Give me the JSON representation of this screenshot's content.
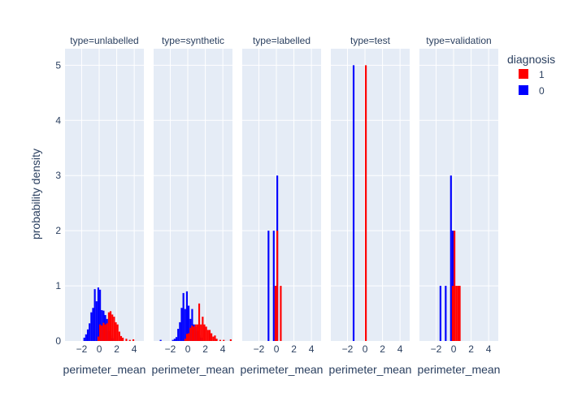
{
  "chart_data": {
    "type": "bar",
    "title": "",
    "ylabel": "probability density",
    "xlabel": "perimeter_mean",
    "ylim": [
      0,
      5.3
    ],
    "xlim": [
      -3.9,
      5.1
    ],
    "yticks": [
      "0",
      "1",
      "2",
      "3",
      "4",
      "5"
    ],
    "xticks": [
      "−2",
      "0",
      "2",
      "4"
    ],
    "legend": {
      "title": "diagnosis",
      "placement": "top-right",
      "items": [
        {
          "label": "1",
          "color": "#ff0000"
        },
        {
          "label": "0",
          "color": "#0000ff"
        }
      ]
    },
    "grid": true,
    "background_color": "#e5ecf6",
    "facets": [
      {
        "title": "type=unlabelled",
        "bin_width": 0.2,
        "series": [
          {
            "label": "0",
            "color": "#0000ff",
            "bins": [
              [
                -1.8,
                0.06
              ],
              [
                -1.6,
                0.12
              ],
              [
                -1.4,
                0.21
              ],
              [
                -1.2,
                0.32
              ],
              [
                -1.0,
                0.52
              ],
              [
                -0.8,
                0.6
              ],
              [
                -0.6,
                0.94
              ],
              [
                -0.4,
                0.72
              ],
              [
                -0.2,
                0.97
              ],
              [
                0.0,
                0.93
              ],
              [
                0.2,
                0.56
              ],
              [
                0.4,
                0.55
              ],
              [
                0.6,
                0.47
              ],
              [
                0.8,
                0.4
              ],
              [
                1.0,
                0.18
              ],
              [
                1.2,
                0.1
              ],
              [
                1.4,
                0.05
              ]
            ]
          },
          {
            "label": "1",
            "color": "#ff0000",
            "bins": [
              [
                -0.2,
                0.08
              ],
              [
                0.0,
                0.3
              ],
              [
                0.2,
                0.28
              ],
              [
                0.4,
                0.33
              ],
              [
                0.6,
                0.3
              ],
              [
                0.8,
                0.32
              ],
              [
                1.0,
                0.52
              ],
              [
                1.2,
                0.54
              ],
              [
                1.4,
                0.48
              ],
              [
                1.6,
                0.44
              ],
              [
                1.8,
                0.34
              ],
              [
                2.0,
                0.3
              ],
              [
                2.2,
                0.17
              ],
              [
                2.4,
                0.09
              ],
              [
                2.6,
                0.06
              ],
              [
                3.0,
                0.04
              ],
              [
                3.4,
                0.02
              ],
              [
                3.8,
                0.03
              ]
            ]
          }
        ]
      },
      {
        "title": "type=synthetic",
        "bin_width": 0.2,
        "series": [
          {
            "label": "0",
            "color": "#0000ff",
            "bins": [
              [
                -3.2,
                0.02
              ],
              [
                -1.8,
                0.02
              ],
              [
                -1.6,
                0.04
              ],
              [
                -1.4,
                0.07
              ],
              [
                -1.2,
                0.22
              ],
              [
                -1.0,
                0.34
              ],
              [
                -0.8,
                0.6
              ],
              [
                -0.6,
                0.87
              ],
              [
                -0.4,
                0.58
              ],
              [
                -0.2,
                0.9
              ],
              [
                0.0,
                0.64
              ],
              [
                0.2,
                0.4
              ],
              [
                0.4,
                0.58
              ],
              [
                0.6,
                0.3
              ],
              [
                0.8,
                0.25
              ],
              [
                1.0,
                0.18
              ],
              [
                1.2,
                0.1
              ],
              [
                1.4,
                0.06
              ]
            ]
          },
          {
            "label": "1",
            "color": "#ff0000",
            "bins": [
              [
                -0.4,
                0.04
              ],
              [
                -0.2,
                0.13
              ],
              [
                0.0,
                0.14
              ],
              [
                0.2,
                0.24
              ],
              [
                0.4,
                0.28
              ],
              [
                0.6,
                0.26
              ],
              [
                0.8,
                0.3
              ],
              [
                1.0,
                0.3
              ],
              [
                1.2,
                0.68
              ],
              [
                1.4,
                0.3
              ],
              [
                1.6,
                0.44
              ],
              [
                1.8,
                0.3
              ],
              [
                2.0,
                0.26
              ],
              [
                2.2,
                0.2
              ],
              [
                2.4,
                0.2
              ],
              [
                2.6,
                0.14
              ],
              [
                2.8,
                0.08
              ],
              [
                3.0,
                0.1
              ],
              [
                3.2,
                0.04
              ],
              [
                3.6,
                0.02
              ],
              [
                4.0,
                0.02
              ],
              [
                4.8,
                0.03
              ]
            ]
          }
        ]
      },
      {
        "title": "type=labelled",
        "bin_width": 0.2,
        "series": [
          {
            "label": "0",
            "color": "#0000ff",
            "bins": [
              [
                -1.0,
                2.0
              ],
              [
                -0.4,
                2.0
              ],
              [
                0.0,
                3.0
              ]
            ]
          },
          {
            "label": "1",
            "color": "#ff0000",
            "bins": [
              [
                -0.2,
                1.0
              ],
              [
                0.0,
                2.0
              ],
              [
                0.4,
                1.0
              ]
            ]
          }
        ]
      },
      {
        "title": "type=test",
        "bin_width": 0.2,
        "series": [
          {
            "label": "0",
            "color": "#0000ff",
            "bins": [
              [
                -1.4,
                5.0
              ]
            ]
          },
          {
            "label": "1",
            "color": "#ff0000",
            "bins": [
              [
                0.0,
                5.0
              ]
            ]
          }
        ]
      },
      {
        "title": "type=validation",
        "bin_width": 0.2,
        "series": [
          {
            "label": "0",
            "color": "#0000ff",
            "bins": [
              [
                -1.6,
                1.0
              ],
              [
                -1.0,
                1.0
              ],
              [
                -0.4,
                3.0
              ],
              [
                -0.2,
                2.0
              ]
            ]
          },
          {
            "label": "1",
            "color": "#ff0000",
            "bins": [
              [
                -0.2,
                1.0
              ],
              [
                0.0,
                2.0
              ],
              [
                0.2,
                1.0
              ],
              [
                0.4,
                1.0
              ],
              [
                0.6,
                1.0
              ]
            ]
          }
        ]
      }
    ]
  }
}
